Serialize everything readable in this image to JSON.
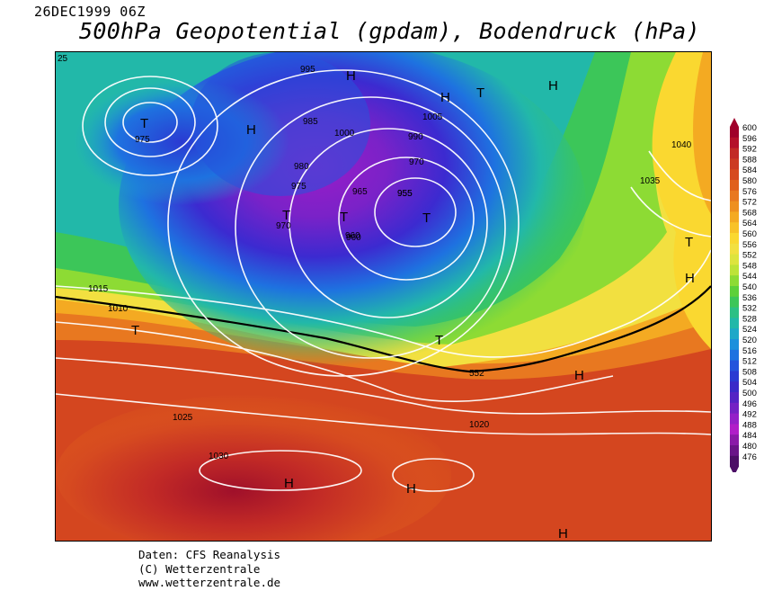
{
  "header": {
    "datetime": "26DEC1999 06Z",
    "title": "500hPa Geopotential (gpdam), Bodendruck (hPa)"
  },
  "footer": {
    "line1": "Daten: CFS Reanalysis",
    "line2": "(C) Wetterzentrale",
    "line3": "www.wetterzentrale.de"
  },
  "legend": {
    "values": [
      "600",
      "596",
      "592",
      "588",
      "584",
      "580",
      "576",
      "572",
      "568",
      "564",
      "560",
      "556",
      "552",
      "548",
      "544",
      "540",
      "536",
      "532",
      "528",
      "524",
      "520",
      "516",
      "512",
      "508",
      "504",
      "500",
      "496",
      "492",
      "488",
      "484",
      "480",
      "476"
    ],
    "colors": [
      "#a0002a",
      "#b4102a",
      "#c22a26",
      "#cc3b23",
      "#d64a20",
      "#e0601c",
      "#e87820",
      "#ee9020",
      "#f4aa22",
      "#f8c228",
      "#fad830",
      "#f2e040",
      "#dde43e",
      "#bde338",
      "#8ddb34",
      "#5dd03a",
      "#3cc659",
      "#2cc085",
      "#22b8a9",
      "#1ea8c8",
      "#1c90dc",
      "#1e72e0",
      "#2454dc",
      "#2a3ad2",
      "#3a2ac8",
      "#5424c4",
      "#7422c4",
      "#9420c8",
      "#b01ec8",
      "#8a1aa8",
      "#6a1488",
      "#4c0e66"
    ]
  },
  "map": {
    "pressure_labels": [
      "25",
      "1015",
      "1010",
      "1005",
      "1000",
      "990",
      "985",
      "980",
      "975",
      "970",
      "965",
      "960",
      "955",
      "995",
      "1040",
      "1035",
      "1030",
      "1025",
      "1020",
      "552"
    ],
    "centers": [
      {
        "sym": "T",
        "label": "975"
      },
      {
        "sym": "H"
      },
      {
        "sym": "H"
      },
      {
        "sym": "H"
      },
      {
        "sym": "T"
      },
      {
        "sym": "H"
      },
      {
        "sym": "T",
        "label": "970"
      },
      {
        "sym": "T",
        "label": "960"
      },
      {
        "sym": "T",
        "label": "955"
      },
      {
        "sym": "T"
      },
      {
        "sym": "T"
      },
      {
        "sym": "H"
      },
      {
        "sym": "H"
      },
      {
        "sym": "H"
      },
      {
        "sym": "H"
      },
      {
        "sym": "H"
      },
      {
        "sym": "T"
      }
    ]
  }
}
